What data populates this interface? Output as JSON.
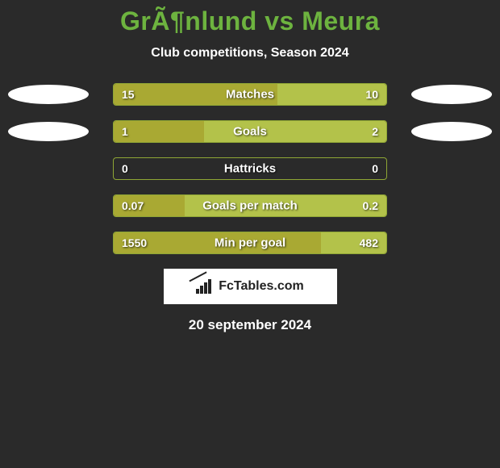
{
  "title": "GrÃ¶nlund vs Meura",
  "subtitle": "Club competitions, Season 2024",
  "colors": {
    "background": "#2a2a2a",
    "title": "#6db33f",
    "text": "#ffffff",
    "bar_left": "#a9a933",
    "bar_right": "#b3c24a",
    "bar_border": "#8fa635",
    "avatar_bg": "#ffffff",
    "logo_bg": "#ffffff",
    "logo_fg": "#222222"
  },
  "rows": [
    {
      "label": "Matches",
      "left_value": "15",
      "right_value": "10",
      "left_pct": 60,
      "right_pct": 40,
      "show_avatars": true
    },
    {
      "label": "Goals",
      "left_value": "1",
      "right_value": "2",
      "left_pct": 33,
      "right_pct": 67,
      "show_avatars": true
    },
    {
      "label": "Hattricks",
      "left_value": "0",
      "right_value": "0",
      "left_pct": 0,
      "right_pct": 0,
      "show_avatars": false
    },
    {
      "label": "Goals per match",
      "left_value": "0.07",
      "right_value": "0.2",
      "left_pct": 26,
      "right_pct": 74,
      "show_avatars": false
    },
    {
      "label": "Min per goal",
      "left_value": "1550",
      "right_value": "482",
      "left_pct": 76,
      "right_pct": 24,
      "show_avatars": false
    }
  ],
  "logo_text": "FcTables.com",
  "date": "20 september 2024"
}
